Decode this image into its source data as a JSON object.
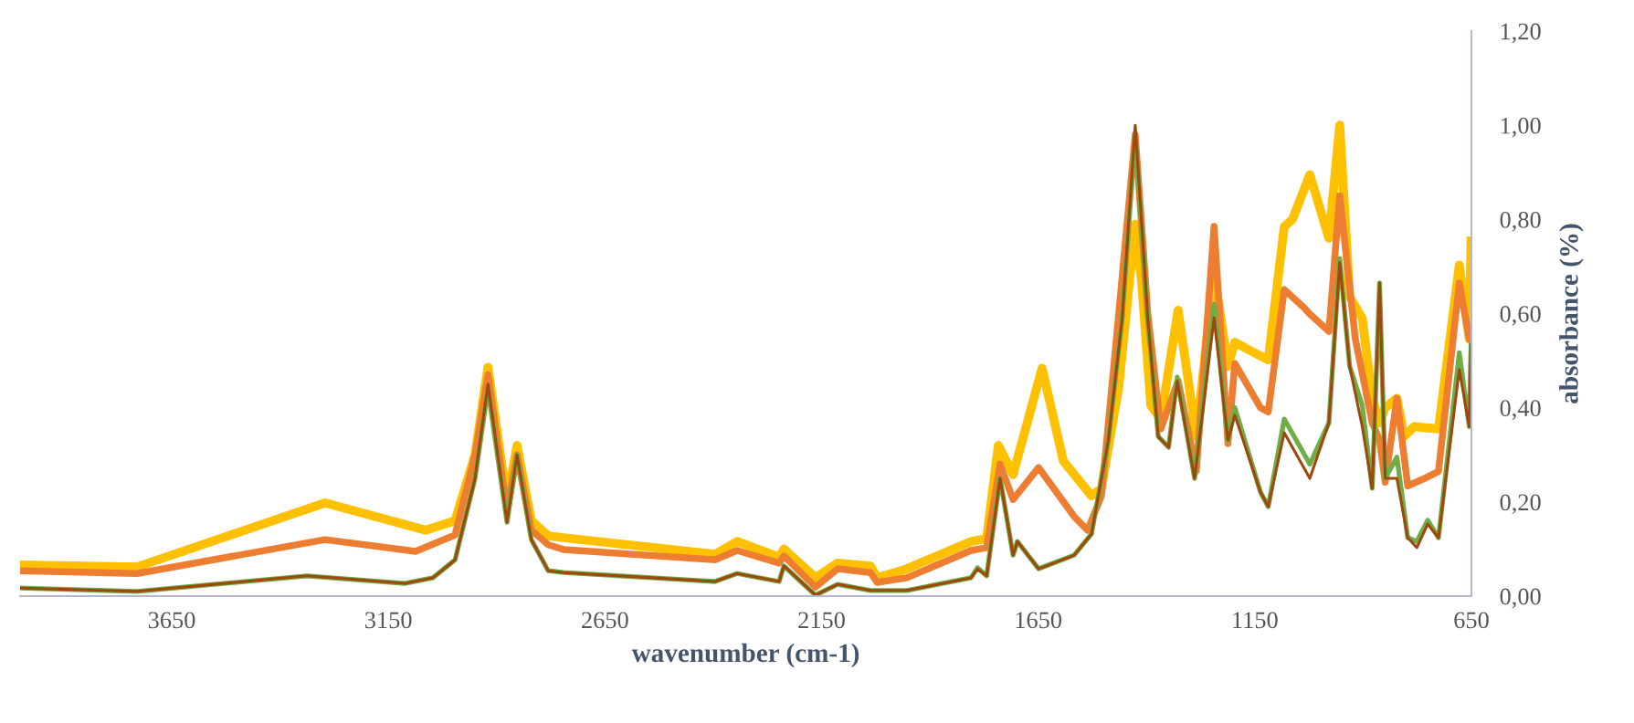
{
  "chart_data": {
    "type": "line",
    "xlabel": "wavenumber (cm-1)",
    "ylabel": "absorbance (%)",
    "xlim": [
      4000,
      650
    ],
    "xticks": [
      3650,
      3150,
      2650,
      2150,
      1650,
      1150,
      650
    ],
    "ylim": [
      0,
      1.2
    ],
    "yticks": [
      {
        "value": 0,
        "label": "0,00"
      },
      {
        "value": 0.2,
        "label": "0,20"
      },
      {
        "value": 0.4,
        "label": "0,40"
      },
      {
        "value": 0.6,
        "label": "0,60"
      },
      {
        "value": 0.8,
        "label": "0,80"
      },
      {
        "value": 1.0,
        "label": "1,00"
      },
      {
        "value": 1.2,
        "label": "1,20"
      }
    ],
    "marker": "none",
    "line_style": "solid",
    "series": [
      {
        "color": "#ffc000",
        "x": [
          4000,
          3730,
          3296,
          3064,
          2996,
          2950,
          2920,
          2876,
          2853,
          2820,
          2781,
          2746,
          2396,
          2345,
          2248,
          2237,
          2164,
          2113,
          2037,
          2022,
          1953,
          1805,
          1769,
          1742,
          1708,
          1641,
          1592,
          1527,
          1504,
          1464,
          1426,
          1411,
          1390,
          1367,
          1327,
          1285,
          1244,
          1212,
          1196,
          1137,
          1119,
          1082,
          1063,
          1023,
          979,
          954,
          931,
          902,
          879,
          862,
          849,
          822,
          805,
          782,
          726,
          678,
          655,
          651
        ],
        "values": [
          0.066,
          0.062,
          0.198,
          0.14,
          0.16,
          0.3,
          0.486,
          0.2,
          0.32,
          0.16,
          0.128,
          0.124,
          0.089,
          0.116,
          0.083,
          0.1,
          0.039,
          0.07,
          0.064,
          0.039,
          0.058,
          0.116,
          0.122,
          0.32,
          0.258,
          0.484,
          0.287,
          0.213,
          0.229,
          0.444,
          0.79,
          0.665,
          0.405,
          0.376,
          0.607,
          0.339,
          0.688,
          0.488,
          0.539,
          0.51,
          0.502,
          0.785,
          0.8,
          0.895,
          0.76,
          1.0,
          0.636,
          0.59,
          0.42,
          0.368,
          0.4,
          0.42,
          0.339,
          0.36,
          0.355,
          0.703,
          0.546,
          0.754
        ]
      },
      {
        "color": "#ed7d31",
        "x": [
          4000,
          3730,
          3296,
          3087,
          2996,
          2950,
          2920,
          2876,
          2853,
          2820,
          2781,
          2746,
          2396,
          2345,
          2248,
          2237,
          2164,
          2113,
          2037,
          2022,
          1953,
          1805,
          1769,
          1738,
          1708,
          1649,
          1567,
          1536,
          1504,
          1464,
          1426,
          1397,
          1367,
          1327,
          1285,
          1244,
          1212,
          1196,
          1137,
          1119,
          1082,
          1038,
          1023,
          979,
          954,
          918,
          879,
          862,
          849,
          822,
          797,
          758,
          726,
          678,
          655,
          651
        ],
        "values": [
          0.054,
          0.048,
          0.12,
          0.095,
          0.13,
          0.3,
          0.47,
          0.18,
          0.3,
          0.14,
          0.109,
          0.099,
          0.077,
          0.097,
          0.07,
          0.085,
          0.019,
          0.058,
          0.05,
          0.029,
          0.039,
          0.097,
          0.103,
          0.28,
          0.205,
          0.273,
          0.169,
          0.14,
          0.213,
          0.6,
          0.98,
          0.6,
          0.355,
          0.457,
          0.265,
          0.785,
          0.324,
          0.494,
          0.4,
          0.391,
          0.651,
          0.614,
          0.599,
          0.562,
          0.85,
          0.546,
          0.368,
          0.331,
          0.242,
          0.42,
          0.234,
          0.25,
          0.265,
          0.665,
          0.546,
          0.55
        ]
      },
      {
        "color": "#70ad47",
        "x": [
          4000,
          3730,
          3338,
          3112,
          3047,
          2996,
          2950,
          2920,
          2876,
          2853,
          2820,
          2781,
          2746,
          2396,
          2345,
          2248,
          2237,
          2164,
          2113,
          2037,
          1953,
          1805,
          1790,
          1769,
          1738,
          1708,
          1698,
          1649,
          1567,
          1527,
          1488,
          1456,
          1426,
          1397,
          1373,
          1349,
          1329,
          1289,
          1244,
          1212,
          1196,
          1137,
          1119,
          1082,
          1023,
          979,
          954,
          931,
          902,
          879,
          862,
          849,
          822,
          797,
          776,
          751,
          726,
          678,
          655,
          651
        ],
        "values": [
          0.017,
          0.01,
          0.043,
          0.027,
          0.039,
          0.077,
          0.25,
          0.44,
          0.157,
          0.3,
          0.12,
          0.054,
          0.05,
          0.031,
          0.048,
          0.031,
          0.064,
          0.002,
          0.025,
          0.012,
          0.012,
          0.039,
          0.06,
          0.043,
          0.25,
          0.087,
          0.116,
          0.058,
          0.087,
          0.132,
          0.331,
          0.591,
          0.98,
          0.591,
          0.339,
          0.316,
          0.465,
          0.25,
          0.62,
          0.331,
          0.4,
          0.221,
          0.19,
          0.376,
          0.28,
          0.368,
          0.717,
          0.488,
          0.405,
          0.229,
          0.665,
          0.25,
          0.295,
          0.124,
          0.116,
          0.161,
          0.124,
          0.517,
          0.36,
          0.533
        ]
      },
      {
        "color": "#9e480e",
        "x": [
          4000,
          3730,
          3338,
          3112,
          3047,
          2996,
          2950,
          2920,
          2876,
          2853,
          2820,
          2781,
          2746,
          2396,
          2345,
          2248,
          2237,
          2164,
          2113,
          2037,
          1953,
          1805,
          1790,
          1769,
          1738,
          1708,
          1698,
          1649,
          1567,
          1527,
          1488,
          1456,
          1426,
          1397,
          1373,
          1349,
          1329,
          1289,
          1244,
          1212,
          1196,
          1137,
          1119,
          1082,
          1023,
          979,
          954,
          931,
          902,
          879,
          862,
          849,
          822,
          797,
          776,
          751,
          726,
          678,
          655,
          651
        ],
        "values": [
          0.017,
          0.01,
          0.043,
          0.027,
          0.039,
          0.077,
          0.25,
          0.45,
          0.157,
          0.3,
          0.12,
          0.054,
          0.05,
          0.031,
          0.048,
          0.031,
          0.064,
          0.002,
          0.025,
          0.012,
          0.012,
          0.039,
          0.058,
          0.043,
          0.25,
          0.087,
          0.116,
          0.058,
          0.087,
          0.132,
          0.331,
          0.591,
          1.0,
          0.591,
          0.339,
          0.316,
          0.457,
          0.25,
          0.591,
          0.331,
          0.384,
          0.221,
          0.19,
          0.347,
          0.25,
          0.368,
          0.709,
          0.488,
          0.36,
          0.229,
          0.665,
          0.25,
          0.25,
          0.124,
          0.103,
          0.153,
          0.124,
          0.481,
          0.36,
          0.533
        ]
      }
    ]
  }
}
